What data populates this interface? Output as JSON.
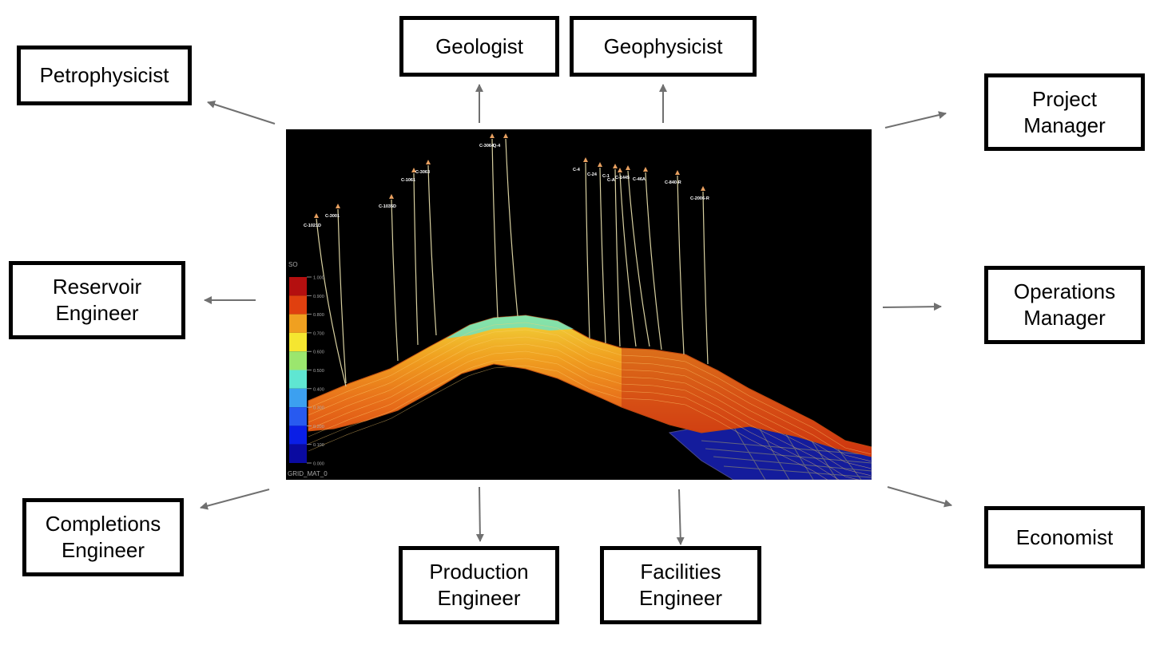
{
  "roles": [
    {
      "id": "petrophysicist",
      "label": "Petrophysicist"
    },
    {
      "id": "geologist",
      "label": "Geologist"
    },
    {
      "id": "geophysicist",
      "label": "Geophysicist"
    },
    {
      "id": "project-manager",
      "label": "Project\nManager"
    },
    {
      "id": "reservoir-engineer",
      "label": "Reservoir\nEngineer"
    },
    {
      "id": "operations-manager",
      "label": "Operations\nManager"
    },
    {
      "id": "completions-engineer",
      "label": "Completions\nEngineer"
    },
    {
      "id": "production-engineer",
      "label": "Production\nEngineer"
    },
    {
      "id": "facilities-engineer",
      "label": "Facilities\nEngineer"
    },
    {
      "id": "economist",
      "label": "Economist"
    }
  ],
  "model": {
    "legend_title": "SO",
    "legend_ticks": [
      "1.000",
      "0.900",
      "0.800",
      "0.700",
      "0.600",
      "0.500",
      "0.400",
      "0.300",
      "0.200",
      "0.100",
      "0.000"
    ],
    "legend_colors": [
      "#b40f0f",
      "#e0400f",
      "#f0a020",
      "#f5e630",
      "#9be66e",
      "#5fe6d2",
      "#3ca0f0",
      "#285af0",
      "#0a1ee6",
      "#0a0aa0"
    ],
    "grid_label": "GRID_MAT_0",
    "wells": [
      "C-1021D",
      "C-3001",
      "C-1035D",
      "C-1061",
      "C-3063",
      "C-3064",
      "Q-4",
      "C-4",
      "C-24",
      "C-1",
      "C-A",
      "C-1445",
      "C-46A",
      "C-840-R",
      "C-2006-R"
    ],
    "colors": {
      "background": "#000000",
      "well_line": "#d8d0a0",
      "well_marker": "#e8a060",
      "arrow": "#707070"
    }
  }
}
